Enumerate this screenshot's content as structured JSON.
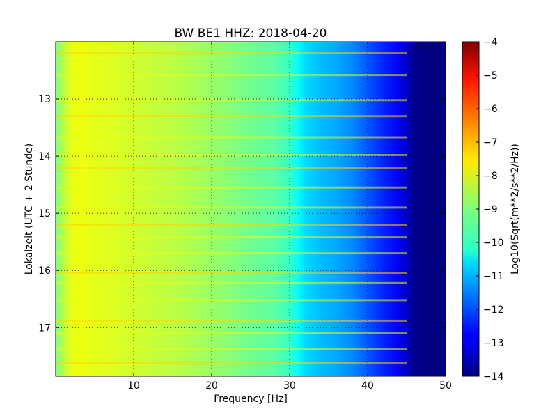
{
  "chart_data": {
    "type": "heatmap",
    "title": "BW BE1 HHZ: 2018-04-20",
    "xlabel": "Frequency [Hz]",
    "ylabel": "Lokalzeit (UTC + 2 Stunde)",
    "xlim": [
      0,
      50
    ],
    "ylim": [
      12.0,
      17.85
    ],
    "y_inverted": true,
    "x_ticks": [
      10,
      20,
      30,
      40,
      50
    ],
    "x_tick_labels": [
      "10",
      "20",
      "30",
      "40",
      "50"
    ],
    "y_ticks": [
      13,
      14,
      15,
      16,
      17
    ],
    "y_tick_labels": [
      "13",
      "14",
      "15",
      "16",
      "17"
    ],
    "grid": true,
    "grid_style": "dotted",
    "colormap": "jet",
    "colorbar": {
      "label": "Log10(Sqrt(m**2/s**2/Hz))",
      "range": [
        -14,
        -4
      ],
      "ticks": [
        -4,
        -5,
        -6,
        -7,
        -8,
        -9,
        -10,
        -11,
        -12,
        -13,
        -14
      ],
      "tick_labels": [
        "−4",
        "−5",
        "−6",
        "−7",
        "−8",
        "−9",
        "−10",
        "−11",
        "−12",
        "−13",
        "−14"
      ]
    },
    "spectrum_profile": {
      "frequency_hz": [
        0.3,
        1,
        2,
        3,
        5,
        8,
        10,
        12,
        15,
        18,
        20,
        22,
        25,
        28,
        30,
        31,
        32,
        34,
        36,
        38,
        40,
        42,
        44,
        45,
        46,
        48,
        50
      ],
      "log10_amplitude": [
        -8.9,
        -8.4,
        -8.0,
        -7.9,
        -8.0,
        -8.1,
        -8.2,
        -8.3,
        -8.4,
        -8.6,
        -8.75,
        -8.9,
        -9.15,
        -9.35,
        -9.7,
        -10.2,
        -10.6,
        -10.9,
        -11.1,
        -11.4,
        -11.9,
        -12.4,
        -12.9,
        -13.3,
        -13.9,
        -14.0,
        -14.0
      ]
    },
    "bright_lines_hours": [
      12.2,
      12.58,
      13.02,
      13.3,
      13.67,
      13.98,
      14.2,
      14.55,
      14.9,
      15.2,
      15.42,
      15.7,
      16.05,
      16.22,
      16.52,
      16.88,
      17.1,
      17.38,
      17.62
    ]
  }
}
